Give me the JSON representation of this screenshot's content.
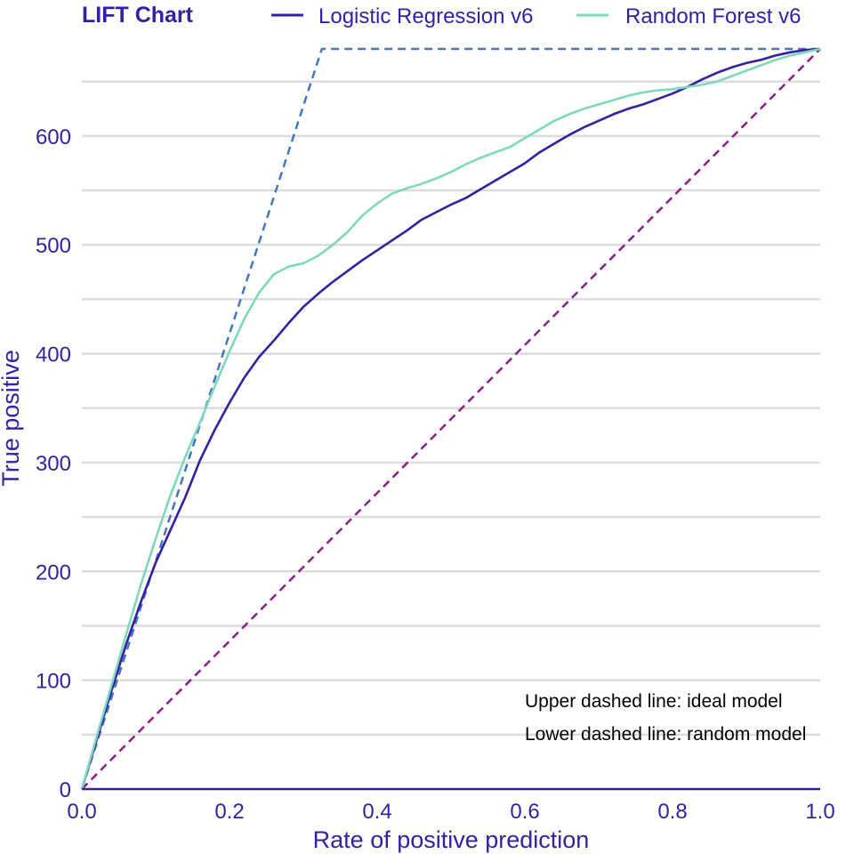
{
  "colors": {
    "text": "#371ea3",
    "grid": "#dcdcdc",
    "axis": "#371ea3",
    "annotation": "#000000"
  },
  "chart_data": {
    "type": "line",
    "title": "LIFT Chart",
    "xlabel": "Rate of positive prediction",
    "ylabel": "True positive",
    "xlim": [
      0,
      1
    ],
    "ylim": [
      0,
      680
    ],
    "x_ticks": [
      0,
      0.2,
      0.4,
      0.6,
      0.8,
      1
    ],
    "x_tick_labels": [
      "0.0",
      "0.2",
      "0.4",
      "0.6",
      "0.8",
      "1.0"
    ],
    "y_ticks": [
      0,
      100,
      200,
      300,
      400,
      500,
      600
    ],
    "y_tick_labels": [
      "0",
      "100",
      "200",
      "300",
      "400",
      "500",
      "600"
    ],
    "y_minor_grid": [
      50,
      150,
      250,
      350,
      450,
      550,
      650
    ],
    "grid": "horizontal",
    "legend_position": "top",
    "series": [
      {
        "name": "Logistic Regression v6",
        "color": "#371ea3",
        "x": [
          0,
          0.02,
          0.04,
          0.06,
          0.08,
          0.1,
          0.12,
          0.14,
          0.16,
          0.18,
          0.2,
          0.22,
          0.24,
          0.26,
          0.28,
          0.3,
          0.32,
          0.34,
          0.36,
          0.38,
          0.4,
          0.42,
          0.44,
          0.46,
          0.48,
          0.5,
          0.52,
          0.54,
          0.56,
          0.58,
          0.6,
          0.62,
          0.64,
          0.66,
          0.68,
          0.7,
          0.72,
          0.74,
          0.76,
          0.78,
          0.8,
          0.82,
          0.84,
          0.86,
          0.88,
          0.9,
          0.92,
          0.94,
          0.96,
          0.98,
          1.0
        ],
        "y": [
          0,
          45,
          90,
          133,
          172,
          208,
          238,
          268,
          302,
          330,
          355,
          378,
          397,
          412,
          428,
          443,
          455,
          466,
          476,
          486,
          495,
          504,
          513,
          523,
          530,
          537,
          543,
          551,
          559,
          567,
          575,
          585,
          593,
          601,
          608,
          614,
          620,
          625,
          629,
          634,
          639,
          645,
          652,
          658,
          663,
          667,
          670,
          674,
          677,
          679,
          680
        ]
      },
      {
        "name": "Random Forest v6",
        "color": "#7fd8be",
        "x": [
          0,
          0.02,
          0.04,
          0.06,
          0.08,
          0.1,
          0.12,
          0.14,
          0.16,
          0.18,
          0.2,
          0.22,
          0.24,
          0.26,
          0.28,
          0.3,
          0.32,
          0.34,
          0.36,
          0.38,
          0.4,
          0.42,
          0.44,
          0.46,
          0.48,
          0.5,
          0.52,
          0.54,
          0.56,
          0.58,
          0.6,
          0.62,
          0.64,
          0.66,
          0.68,
          0.7,
          0.72,
          0.74,
          0.76,
          0.78,
          0.8,
          0.82,
          0.84,
          0.86,
          0.88,
          0.9,
          0.92,
          0.94,
          0.96,
          0.98,
          1.0
        ],
        "y": [
          0,
          48,
          95,
          142,
          188,
          230,
          270,
          305,
          337,
          370,
          402,
          432,
          456,
          473,
          480,
          483,
          490,
          500,
          512,
          527,
          538,
          547,
          552,
          556,
          561,
          567,
          574,
          580,
          585,
          590,
          598,
          606,
          614,
          620,
          625,
          629,
          633,
          637,
          640,
          642,
          643,
          645,
          647,
          650,
          655,
          660,
          665,
          670,
          674,
          677,
          680
        ]
      },
      {
        "name": "ideal model",
        "color": "#4378bf",
        "dashed": true,
        "x": [
          0,
          0.325,
          1
        ],
        "y": [
          0,
          680,
          680
        ]
      },
      {
        "name": "random model",
        "color": "#8b1e8b",
        "dashed": true,
        "x": [
          0,
          1
        ],
        "y": [
          0,
          680
        ]
      }
    ],
    "annotations": [
      "Upper dashed line: ideal model",
      "Lower dashed line: random model"
    ]
  }
}
